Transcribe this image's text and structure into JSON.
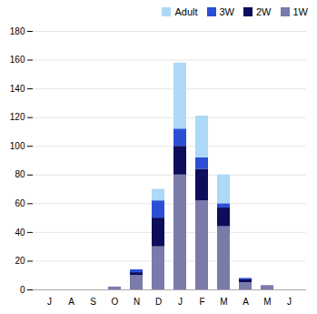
{
  "chart_data": {
    "type": "bar",
    "stacked": true,
    "categories": [
      "J",
      "A",
      "S",
      "O",
      "N",
      "D",
      "J",
      "F",
      "M",
      "A",
      "M",
      "J"
    ],
    "series": [
      {
        "name": "1W",
        "color": "#7b7bab",
        "values": [
          0,
          0,
          0,
          2,
          10,
          30,
          80,
          62,
          44,
          5,
          3,
          0
        ]
      },
      {
        "name": "2W",
        "color": "#0d0d5c",
        "values": [
          0,
          0,
          0,
          0,
          2,
          20,
          20,
          22,
          13,
          2,
          0,
          0
        ]
      },
      {
        "name": "3W",
        "color": "#2b4fd4",
        "values": [
          0,
          0,
          0,
          0,
          2,
          12,
          12,
          8,
          3,
          1,
          0,
          0
        ]
      },
      {
        "name": "Adult",
        "color": "#add8f7",
        "values": [
          0,
          0,
          0,
          0,
          0,
          8,
          46,
          29,
          20,
          0,
          0,
          0
        ]
      }
    ],
    "ylim": [
      0,
      180
    ],
    "yticks": [
      0,
      20,
      40,
      60,
      80,
      100,
      120,
      140,
      160,
      180
    ],
    "grid": true,
    "legend": "upper right"
  }
}
